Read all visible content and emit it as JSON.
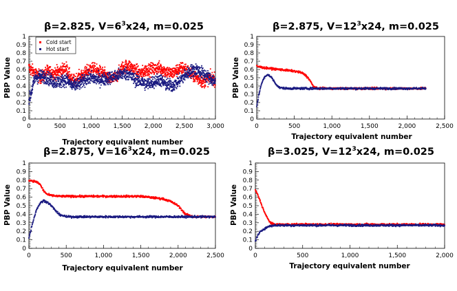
{
  "chart_data": [
    {
      "type": "scatter",
      "title": {
        "prefix": "β=2.825, V=6",
        "sup": "3",
        "suffix": "x24, m=0.025"
      },
      "xlabel": "Trajectory equivalent number",
      "ylabel": "PBP Value",
      "xlim": [
        0,
        3000
      ],
      "ylim": [
        0,
        1
      ],
      "xticks": [
        0,
        500,
        1000,
        1500,
        2000,
        2500,
        3000
      ],
      "xtick_labels": [
        "0",
        "500",
        "1,000",
        "1,500",
        "2,000",
        "2,500",
        "3,000"
      ],
      "yticks": [
        0,
        0.1,
        0.2,
        0.3,
        0.4,
        0.5,
        0.6,
        0.7,
        0.8,
        0.9,
        1
      ],
      "ytick_labels": [
        "0",
        "0.1",
        "0.2",
        "0.3",
        "0.4",
        "0.5",
        "0.6",
        "0.7",
        "0.8",
        "0.9",
        "1"
      ],
      "legend": {
        "position": "top-left",
        "entries": [
          "Cold start",
          "Hot start"
        ]
      },
      "series": [
        {
          "name": "Cold start",
          "color": "#ff0000",
          "x": [
            0,
            100,
            200,
            300,
            400,
            500,
            600,
            700,
            800,
            900,
            1000,
            1100,
            1200,
            1300,
            1400,
            1500,
            1600,
            1700,
            1800,
            1900,
            2000,
            2100,
            2200,
            2300,
            2400,
            2500,
            2600,
            2700,
            2800,
            2900,
            3000
          ],
          "y": [
            0.62,
            0.55,
            0.5,
            0.58,
            0.55,
            0.58,
            0.62,
            0.45,
            0.5,
            0.55,
            0.62,
            0.58,
            0.55,
            0.48,
            0.5,
            0.62,
            0.65,
            0.6,
            0.55,
            0.6,
            0.6,
            0.62,
            0.58,
            0.55,
            0.6,
            0.62,
            0.55,
            0.5,
            0.45,
            0.5,
            0.48
          ]
        },
        {
          "name": "Hot start",
          "color": "#1a1a80",
          "x": [
            0,
            100,
            200,
            300,
            400,
            500,
            600,
            700,
            800,
            900,
            1000,
            1100,
            1200,
            1300,
            1400,
            1500,
            1600,
            1700,
            1800,
            1900,
            2000,
            2100,
            2200,
            2300,
            2400,
            2500,
            2600,
            2700,
            2800,
            2900,
            3000
          ],
          "y": [
            0.22,
            0.5,
            0.52,
            0.5,
            0.45,
            0.45,
            0.48,
            0.4,
            0.42,
            0.48,
            0.5,
            0.48,
            0.48,
            0.5,
            0.52,
            0.55,
            0.55,
            0.48,
            0.45,
            0.42,
            0.45,
            0.48,
            0.42,
            0.4,
            0.45,
            0.52,
            0.58,
            0.6,
            0.55,
            0.5,
            0.45
          ]
        }
      ]
    },
    {
      "type": "scatter",
      "title": {
        "prefix": "β=2.875, V=12",
        "sup": "3",
        "suffix": "x24, m=0.025"
      },
      "xlabel": "Trajectory equivalent number",
      "ylabel": "PBP Value",
      "xlim": [
        0,
        2500
      ],
      "ylim": [
        0,
        1
      ],
      "xticks": [
        0,
        500,
        1000,
        1500,
        2000,
        2500
      ],
      "xtick_labels": [
        "0",
        "500",
        "1,000",
        "1,500",
        "2,000",
        "2,500"
      ],
      "yticks": [
        0,
        0.1,
        0.2,
        0.3,
        0.4,
        0.5,
        0.6,
        0.7,
        0.8,
        0.9,
        1
      ],
      "ytick_labels": [
        "0",
        "0.1",
        "0.2",
        "0.3",
        "0.4",
        "0.5",
        "0.6",
        "0.7",
        "0.8",
        "0.9",
        "1"
      ],
      "series": [
        {
          "name": "Cold start",
          "color": "#ff0000",
          "x": [
            0,
            50,
            100,
            200,
            300,
            400,
            500,
            600,
            650,
            700,
            750,
            800,
            1000,
            1200,
            1500,
            1800,
            2000,
            2200,
            2250
          ],
          "y": [
            0.64,
            0.63,
            0.62,
            0.61,
            0.6,
            0.59,
            0.58,
            0.56,
            0.53,
            0.48,
            0.4,
            0.37,
            0.37,
            0.37,
            0.37,
            0.37,
            0.37,
            0.37,
            0.37
          ]
        },
        {
          "name": "Hot start",
          "color": "#1a1a80",
          "x": [
            0,
            30,
            60,
            100,
            150,
            200,
            250,
            300,
            400,
            500,
            600,
            800,
            1000,
            1500,
            2000,
            2250
          ],
          "y": [
            0.15,
            0.3,
            0.42,
            0.5,
            0.54,
            0.5,
            0.43,
            0.38,
            0.37,
            0.37,
            0.37,
            0.37,
            0.37,
            0.37,
            0.37,
            0.37
          ]
        }
      ]
    },
    {
      "type": "scatter",
      "title": {
        "prefix": "β=2.875, V=16",
        "sup": "3",
        "suffix": "x24, m=0.025"
      },
      "xlabel": "Trajectory equivalent number",
      "ylabel": "PBP Value",
      "xlim": [
        0,
        2500
      ],
      "ylim": [
        0,
        1
      ],
      "xticks": [
        0,
        500,
        1000,
        1500,
        2000,
        2500
      ],
      "xtick_labels": [
        "0",
        "500",
        "1,000",
        "1,500",
        "2,000",
        "2,500"
      ],
      "yticks": [
        0,
        0.1,
        0.2,
        0.3,
        0.4,
        0.5,
        0.6,
        0.7,
        0.8,
        0.9,
        1
      ],
      "ytick_labels": [
        "0",
        "0.1",
        "0.2",
        "0.3",
        "0.4",
        "0.5",
        "0.6",
        "0.7",
        "0.8",
        "0.9",
        "1"
      ],
      "series": [
        {
          "name": "Cold start",
          "color": "#ff0000",
          "x": [
            0,
            50,
            100,
            150,
            200,
            250,
            300,
            400,
            500,
            1000,
            1500,
            1800,
            1900,
            2000,
            2050,
            2100,
            2200,
            2300,
            2500
          ],
          "y": [
            0.8,
            0.79,
            0.78,
            0.75,
            0.67,
            0.63,
            0.62,
            0.61,
            0.61,
            0.61,
            0.61,
            0.58,
            0.55,
            0.5,
            0.45,
            0.4,
            0.37,
            0.37,
            0.37
          ]
        },
        {
          "name": "Hot start",
          "color": "#1a1a80",
          "x": [
            0,
            50,
            100,
            150,
            200,
            250,
            300,
            400,
            500,
            1000,
            1500,
            2000,
            2500
          ],
          "y": [
            0.12,
            0.3,
            0.45,
            0.53,
            0.56,
            0.54,
            0.5,
            0.4,
            0.37,
            0.37,
            0.37,
            0.37,
            0.37
          ]
        }
      ]
    },
    {
      "type": "scatter",
      "title": {
        "prefix": "β=3.025, V=12",
        "sup": "3",
        "suffix": "x24, m=0.025"
      },
      "xlabel": "Trajectory equivalent number",
      "ylabel": "PBP Value",
      "xlim": [
        0,
        2000
      ],
      "ylim": [
        0,
        1
      ],
      "xticks": [
        0,
        500,
        1000,
        1500,
        2000
      ],
      "xtick_labels": [
        "0",
        "500",
        "1,000",
        "1,500",
        "2,000"
      ],
      "yticks": [
        0,
        0.1,
        0.2,
        0.3,
        0.4,
        0.5,
        0.6,
        0.7,
        0.8,
        0.9,
        1
      ],
      "ytick_labels": [
        "0",
        "0.1",
        "0.2",
        "0.3",
        "0.4",
        "0.5",
        "0.6",
        "0.7",
        "0.8",
        "0.9",
        "1"
      ],
      "series": [
        {
          "name": "Cold start",
          "color": "#ff0000",
          "x": [
            0,
            20,
            50,
            80,
            110,
            140,
            170,
            200,
            300,
            500,
            1000,
            1500,
            2000
          ],
          "y": [
            0.68,
            0.64,
            0.56,
            0.47,
            0.39,
            0.33,
            0.29,
            0.28,
            0.28,
            0.28,
            0.28,
            0.28,
            0.28
          ]
        },
        {
          "name": "Hot start",
          "color": "#1a1a80",
          "x": [
            0,
            20,
            50,
            80,
            110,
            150,
            200,
            300,
            500,
            1000,
            1500,
            2000
          ],
          "y": [
            0.08,
            0.14,
            0.19,
            0.22,
            0.24,
            0.26,
            0.27,
            0.27,
            0.27,
            0.27,
            0.27,
            0.27
          ]
        }
      ]
    }
  ]
}
